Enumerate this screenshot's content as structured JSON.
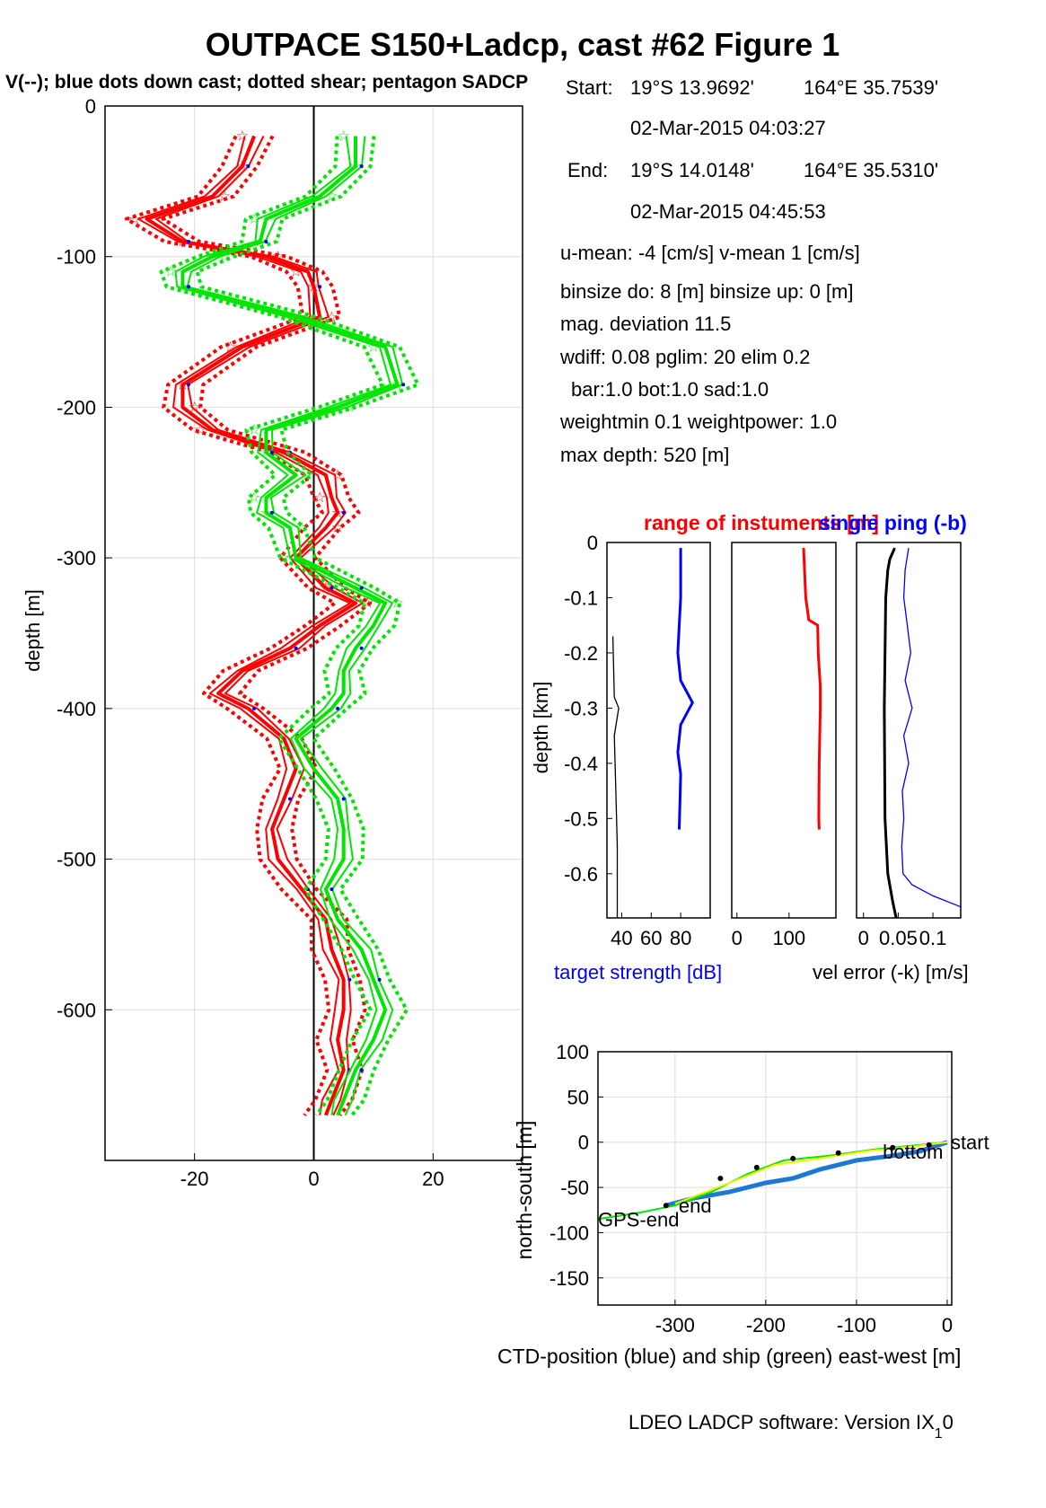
{
  "title": "OUTPACE S150+Ladcp, cast #62  Figure 1",
  "subtitle": "V(--); blue dots down cast; dotted shear; pentagon SADCP",
  "info": {
    "start_label": "Start:",
    "start_lat": "19°S 13.9692'",
    "start_lon": "164°E 35.7539'",
    "start_time": "02-Mar-2015 04:03:27",
    "end_label": "End:",
    "end_lat": "19°S 14.0148'",
    "end_lon": "164°E 35.5310'",
    "end_time": "02-Mar-2015 04:45:53",
    "means": "u-mean:  -4 [cm/s]    v-mean   1 [cm/s]",
    "binsize": "binsize do: 8 [m]  binsize up:  0 [m]",
    "magdev": "mag. deviation 11.5",
    "wdiff": "wdiff: 0.08  pglim: 20  elim 0.2",
    "bar": "bar:1.0 bot:1.0 sad:1.0",
    "weight": "weightmin 0.1  weightpower: 1.0",
    "maxdepth": "max depth: 520 [m]"
  },
  "footer": "LDEO LADCP software: Version IX",
  "footer_sub": "1",
  "footer_tail": "0",
  "colors": {
    "u": "#ff0000",
    "v": "#00ee00",
    "dots": "#0000ff",
    "ctd": "#1f77d4",
    "ship": "#00dd00"
  },
  "chart_data": [
    {
      "type": "line",
      "id": "velocity-profile",
      "ylabel": "depth [m]",
      "xlim": [
        -35,
        35
      ],
      "ylim": [
        -700,
        0
      ],
      "xticks": [
        -20,
        0,
        20
      ],
      "yticks": [
        0,
        -100,
        -200,
        -300,
        -400,
        -500,
        -600
      ],
      "grid": true,
      "series": [
        {
          "color": "red",
          "depth": [
            -20,
            -40,
            -60,
            -75,
            -90,
            -100,
            -110,
            -120,
            -140,
            -160,
            -185,
            -200,
            -215,
            -230,
            -245,
            -260,
            -270,
            -280,
            -300,
            -320,
            -330,
            -345,
            -360,
            -375,
            -390,
            -400,
            -420,
            -440,
            -460,
            -480,
            -500,
            -520,
            -540,
            -560,
            -580,
            -600,
            -620,
            -640,
            -660,
            -670
          ],
          "values": [
            -10,
            -12,
            -17,
            -28,
            -22,
            -8,
            -1,
            0,
            1,
            -12,
            -22,
            -22,
            -17,
            -5,
            2,
            3,
            4,
            2,
            -3,
            2,
            7,
            1,
            -4,
            -12,
            -16,
            -11,
            -5,
            -3,
            -5,
            -7,
            -6,
            -2,
            2,
            3,
            5,
            5,
            4,
            5,
            3,
            2
          ]
        },
        {
          "color": "green",
          "depth": [
            -20,
            -40,
            -60,
            -75,
            -90,
            -100,
            -110,
            -120,
            -140,
            -160,
            -185,
            -200,
            -215,
            -230,
            -245,
            -260,
            -270,
            -280,
            -300,
            -320,
            -330,
            -345,
            -360,
            -375,
            -390,
            -400,
            -420,
            -440,
            -460,
            -480,
            -500,
            -520,
            -540,
            -560,
            -580,
            -600,
            -620,
            -640,
            -660,
            -670
          ],
          "values": [
            7,
            7,
            1,
            -8,
            -9,
            -17,
            -22,
            -22,
            -3,
            12,
            14,
            4,
            -8,
            -8,
            -3,
            -8,
            -8,
            -4,
            -3,
            7,
            12,
            10,
            7,
            5,
            5,
            3,
            -3,
            0,
            4,
            5,
            5,
            2,
            4,
            8,
            10,
            12,
            10,
            7,
            5,
            4
          ]
        }
      ]
    },
    {
      "type": "line",
      "id": "target-strength",
      "ylabel": "depth [km]",
      "xlabel": "target strength [dB]",
      "xticks": [
        40,
        60,
        80
      ],
      "xlim": [
        30,
        100
      ],
      "ylim": [
        -0.68,
        0
      ],
      "yticks": [
        0,
        -0.1,
        -0.2,
        -0.3,
        -0.4,
        -0.5,
        -0.6
      ],
      "series": [
        {
          "color": "blue",
          "depth": [
            -0.01,
            -0.1,
            -0.2,
            -0.25,
            -0.29,
            -0.33,
            -0.38,
            -0.42,
            -0.52
          ],
          "values": [
            80,
            80,
            78,
            80,
            88,
            80,
            78,
            80,
            79
          ]
        },
        {
          "color": "black",
          "depth": [
            -0.17,
            -0.28,
            -0.3,
            -0.35,
            -0.45,
            -0.55,
            -0.68
          ],
          "values": [
            34,
            35,
            38,
            35,
            36,
            37,
            37
          ]
        }
      ]
    },
    {
      "type": "line",
      "id": "range",
      "title": "range of instuments [m]",
      "xticks": [
        0,
        100
      ],
      "xlim": [
        -10,
        190
      ],
      "ylim": [
        -0.68,
        0
      ],
      "series": [
        {
          "color": "red",
          "depth": [
            -0.01,
            -0.1,
            -0.14,
            -0.15,
            -0.2,
            -0.26,
            -0.3,
            -0.4,
            -0.5,
            -0.52
          ],
          "values": [
            128,
            132,
            138,
            155,
            156,
            160,
            160,
            158,
            157,
            158
          ]
        }
      ]
    },
    {
      "type": "line",
      "id": "velocity-error",
      "title": "single ping (-b)",
      "xlabel": "vel error (-k) [m/s]",
      "xticklabels": [
        "0",
        "0.05",
        "0.1"
      ],
      "xticks": [
        0,
        0.05,
        0.1
      ],
      "xlim": [
        -0.01,
        0.14
      ],
      "ylim": [
        -0.68,
        0
      ],
      "series": [
        {
          "color": "black",
          "depth": [
            -0.01,
            -0.03,
            -0.05,
            -0.1,
            -0.3,
            -0.5,
            -0.6,
            -0.65,
            -0.68
          ],
          "values": [
            0.045,
            0.038,
            0.035,
            0.032,
            0.03,
            0.031,
            0.035,
            0.042,
            0.047
          ]
        },
        {
          "color": "blue",
          "depth": [
            -0.01,
            -0.05,
            -0.1,
            -0.15,
            -0.2,
            -0.25,
            -0.3,
            -0.35,
            -0.4,
            -0.45,
            -0.5,
            -0.55,
            -0.6,
            -0.62,
            -0.64,
            -0.66
          ],
          "values": [
            0.065,
            0.06,
            0.058,
            0.063,
            0.068,
            0.06,
            0.07,
            0.058,
            0.065,
            0.056,
            0.058,
            0.055,
            0.057,
            0.07,
            0.1,
            0.14
          ]
        }
      ]
    },
    {
      "type": "line",
      "id": "position",
      "ylabel": "north-south [m]",
      "xlabel": "CTD-position (blue) and ship (green) east-west [m]",
      "xlim": [
        -385,
        5
      ],
      "ylim": [
        -180,
        100
      ],
      "xticks": [
        -300,
        -200,
        -100,
        0
      ],
      "yticks": [
        100,
        50,
        0,
        -50,
        -100,
        -150
      ],
      "annotations": [
        {
          "text": "start",
          "x": 0,
          "y": 0
        },
        {
          "text": "bottom",
          "x": -75,
          "y": -10
        },
        {
          "text": "end",
          "x": -300,
          "y": -70
        },
        {
          "text": "GPS-end",
          "x": -385,
          "y": -85
        }
      ],
      "series": [
        {
          "color": "blue",
          "x": [
            0,
            -30,
            -60,
            -100,
            -140,
            -170,
            -200,
            -240,
            -280,
            -310
          ],
          "y": [
            0,
            -10,
            -15,
            -20,
            -30,
            -40,
            -45,
            -55,
            -62,
            -70
          ]
        },
        {
          "color": "green",
          "x": [
            0,
            -30,
            -80,
            -130,
            -180,
            -220,
            -260,
            -300,
            -340,
            -385
          ],
          "y": [
            0,
            -3,
            -8,
            -15,
            -20,
            -35,
            -55,
            -70,
            -78,
            -85
          ]
        },
        {
          "color": "yellow",
          "x": [
            0,
            -40,
            -90,
            -140,
            -190,
            -240,
            -300
          ],
          "y": [
            0,
            -5,
            -10,
            -18,
            -25,
            -45,
            -68
          ]
        }
      ]
    }
  ]
}
